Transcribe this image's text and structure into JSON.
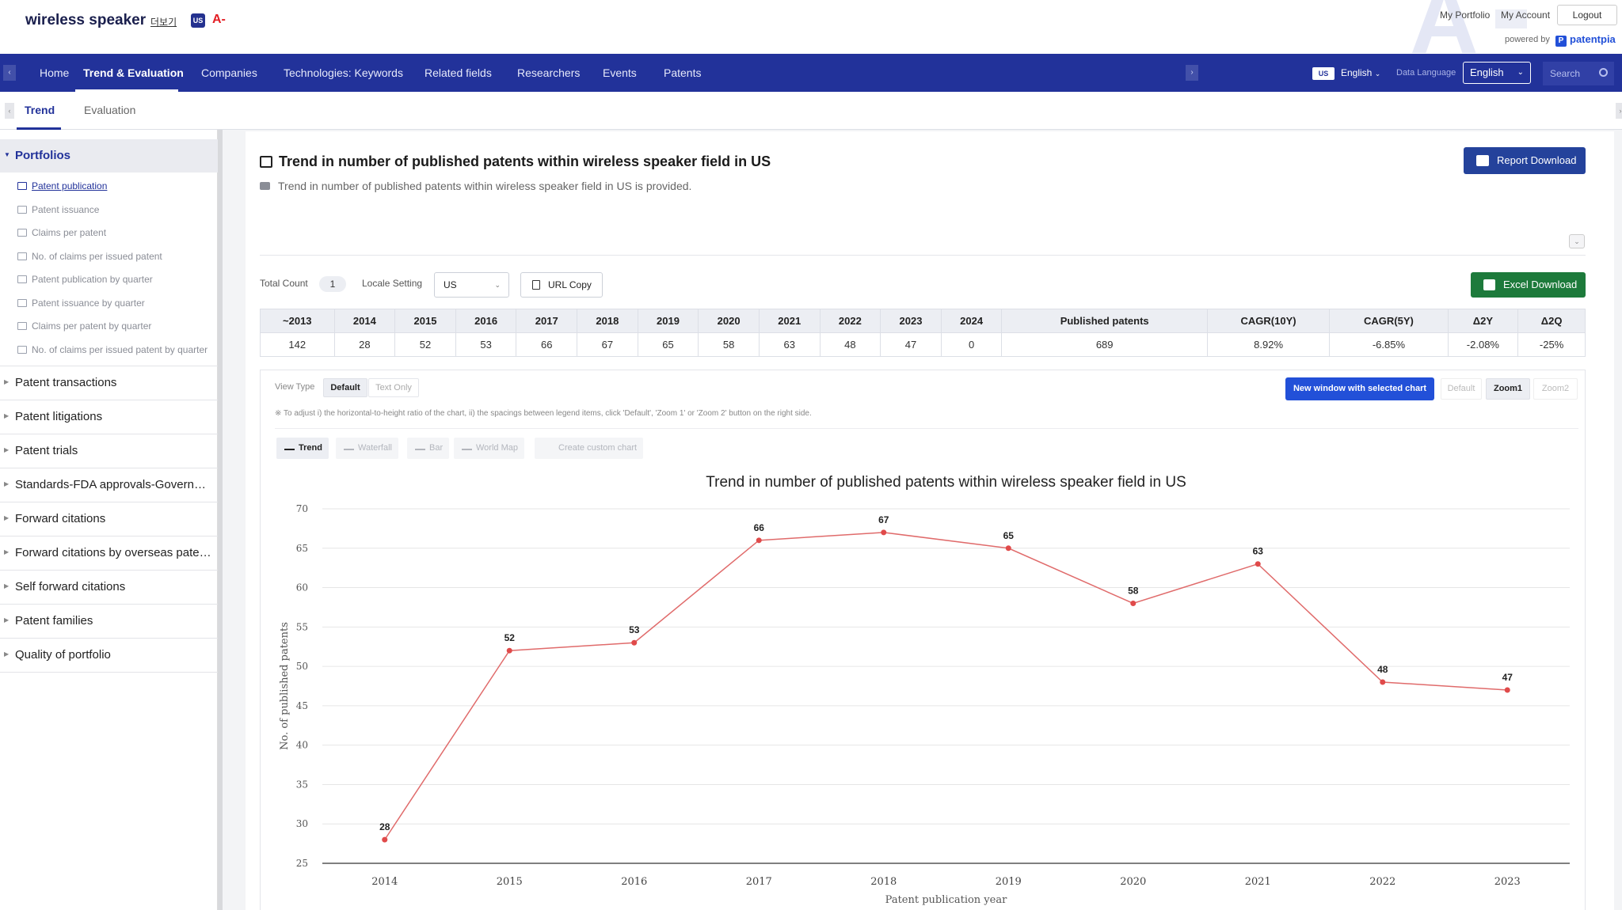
{
  "header": {
    "brand": "wireless speaker",
    "more": "더보기",
    "flag": "US",
    "grade": "A-",
    "my_portfolio": "My Portfolio",
    "my_account": "My Account",
    "logout": "Logout",
    "powered_by": "powered by",
    "provider_mark": "P",
    "provider": "patentpia"
  },
  "nav": {
    "items": [
      "Home",
      "Trend & Evaluation",
      "Companies",
      "Technologies: Keywords",
      "Related fields",
      "Researchers",
      "Events",
      "Patents"
    ],
    "active_index": 1,
    "prev_icon": "chevron-left-icon",
    "next_icon": "chevron-right-icon",
    "lang_flag": "US",
    "lang": "English",
    "data_language_label": "Data Language",
    "data_language": "English",
    "search_placeholder": "Search"
  },
  "subtabs": {
    "items": [
      "Trend",
      "Evaluation"
    ],
    "active_index": 0
  },
  "sidebar": {
    "sections": [
      {
        "label": "Portfolios",
        "open": true,
        "items": [
          {
            "label": "Patent publication",
            "active": true
          },
          {
            "label": "Patent issuance"
          },
          {
            "label": "Claims per patent"
          },
          {
            "label": "No. of claims per issued patent"
          },
          {
            "label": "Patent publication by quarter"
          },
          {
            "label": "Patent issuance by quarter"
          },
          {
            "label": "Claims per patent by quarter"
          },
          {
            "label": "No. of claims per issued patent by quarter"
          }
        ]
      },
      {
        "label": "Patent transactions"
      },
      {
        "label": "Patent litigations"
      },
      {
        "label": "Patent trials"
      },
      {
        "label": "Standards-FDA approvals-Government"
      },
      {
        "label": "Forward citations"
      },
      {
        "label": "Forward citations by overseas patents"
      },
      {
        "label": "Self forward citations"
      },
      {
        "label": "Patent families"
      },
      {
        "label": "Quality of portfolio"
      }
    ]
  },
  "main": {
    "title": "Trend in number of published patents within wireless speaker field in US",
    "description": "Trend in number of published patents within wireless speaker field in US is provided.",
    "report_download": "Report Download",
    "total_count_label": "Total Count",
    "total_count": "1",
    "locale_label": "Locale Setting",
    "locale_value": "US",
    "url_copy": "URL Copy",
    "excel_download": "Excel Download"
  },
  "table": {
    "headers": [
      "~2013",
      "2014",
      "2015",
      "2016",
      "2017",
      "2018",
      "2019",
      "2020",
      "2021",
      "2022",
      "2023",
      "2024",
      "Published patents",
      "CAGR(10Y)",
      "CAGR(5Y)",
      "Δ2Y",
      "Δ2Q"
    ],
    "row": [
      "142",
      "28",
      "52",
      "53",
      "66",
      "67",
      "65",
      "58",
      "63",
      "48",
      "47",
      "0",
      "689",
      "8.92%",
      "-6.85%",
      "-2.08%",
      "-25%"
    ]
  },
  "chart_controls": {
    "view_type_label": "View Type",
    "view_types": [
      "Default",
      "Text Only"
    ],
    "view_type_active": 0,
    "new_window": "New window with selected chart",
    "zoom_options": [
      "Default",
      "Zoom1",
      "Zoom2"
    ],
    "zoom_active": 1,
    "note": "※ To adjust i) the horizontal-to-height ratio of the chart, ii) the spacings between legend items, click 'Default', 'Zoom 1' or 'Zoom 2' button on the right side.",
    "chart_types": [
      "Trend",
      "Waterfall",
      "Bar",
      "World Map",
      "Create custom chart"
    ],
    "chart_type_active": 0
  },
  "chart_data": {
    "type": "line",
    "title": "Trend in number of published patents within wireless speaker field in US",
    "xlabel": "Patent publication year",
    "ylabel": "No. of published patents",
    "x": [
      "2014",
      "2015",
      "2016",
      "2017",
      "2018",
      "2019",
      "2020",
      "2021",
      "2022",
      "2023"
    ],
    "values": [
      28,
      52,
      53,
      66,
      67,
      65,
      58,
      63,
      48,
      47
    ],
    "ylim": [
      25,
      70
    ],
    "yticks": [
      25,
      30,
      35,
      40,
      45,
      50,
      55,
      60,
      65,
      70
    ],
    "grid": true,
    "data_labels": true,
    "line_color": "#e06b6b",
    "point_color": "#e04a4a"
  },
  "colors": {
    "nav_bg": "#22329a",
    "report_button": "#24429b",
    "excel_button": "#1d7a3b",
    "primary_button": "#2250d8",
    "grade_red": "#e31e24"
  }
}
